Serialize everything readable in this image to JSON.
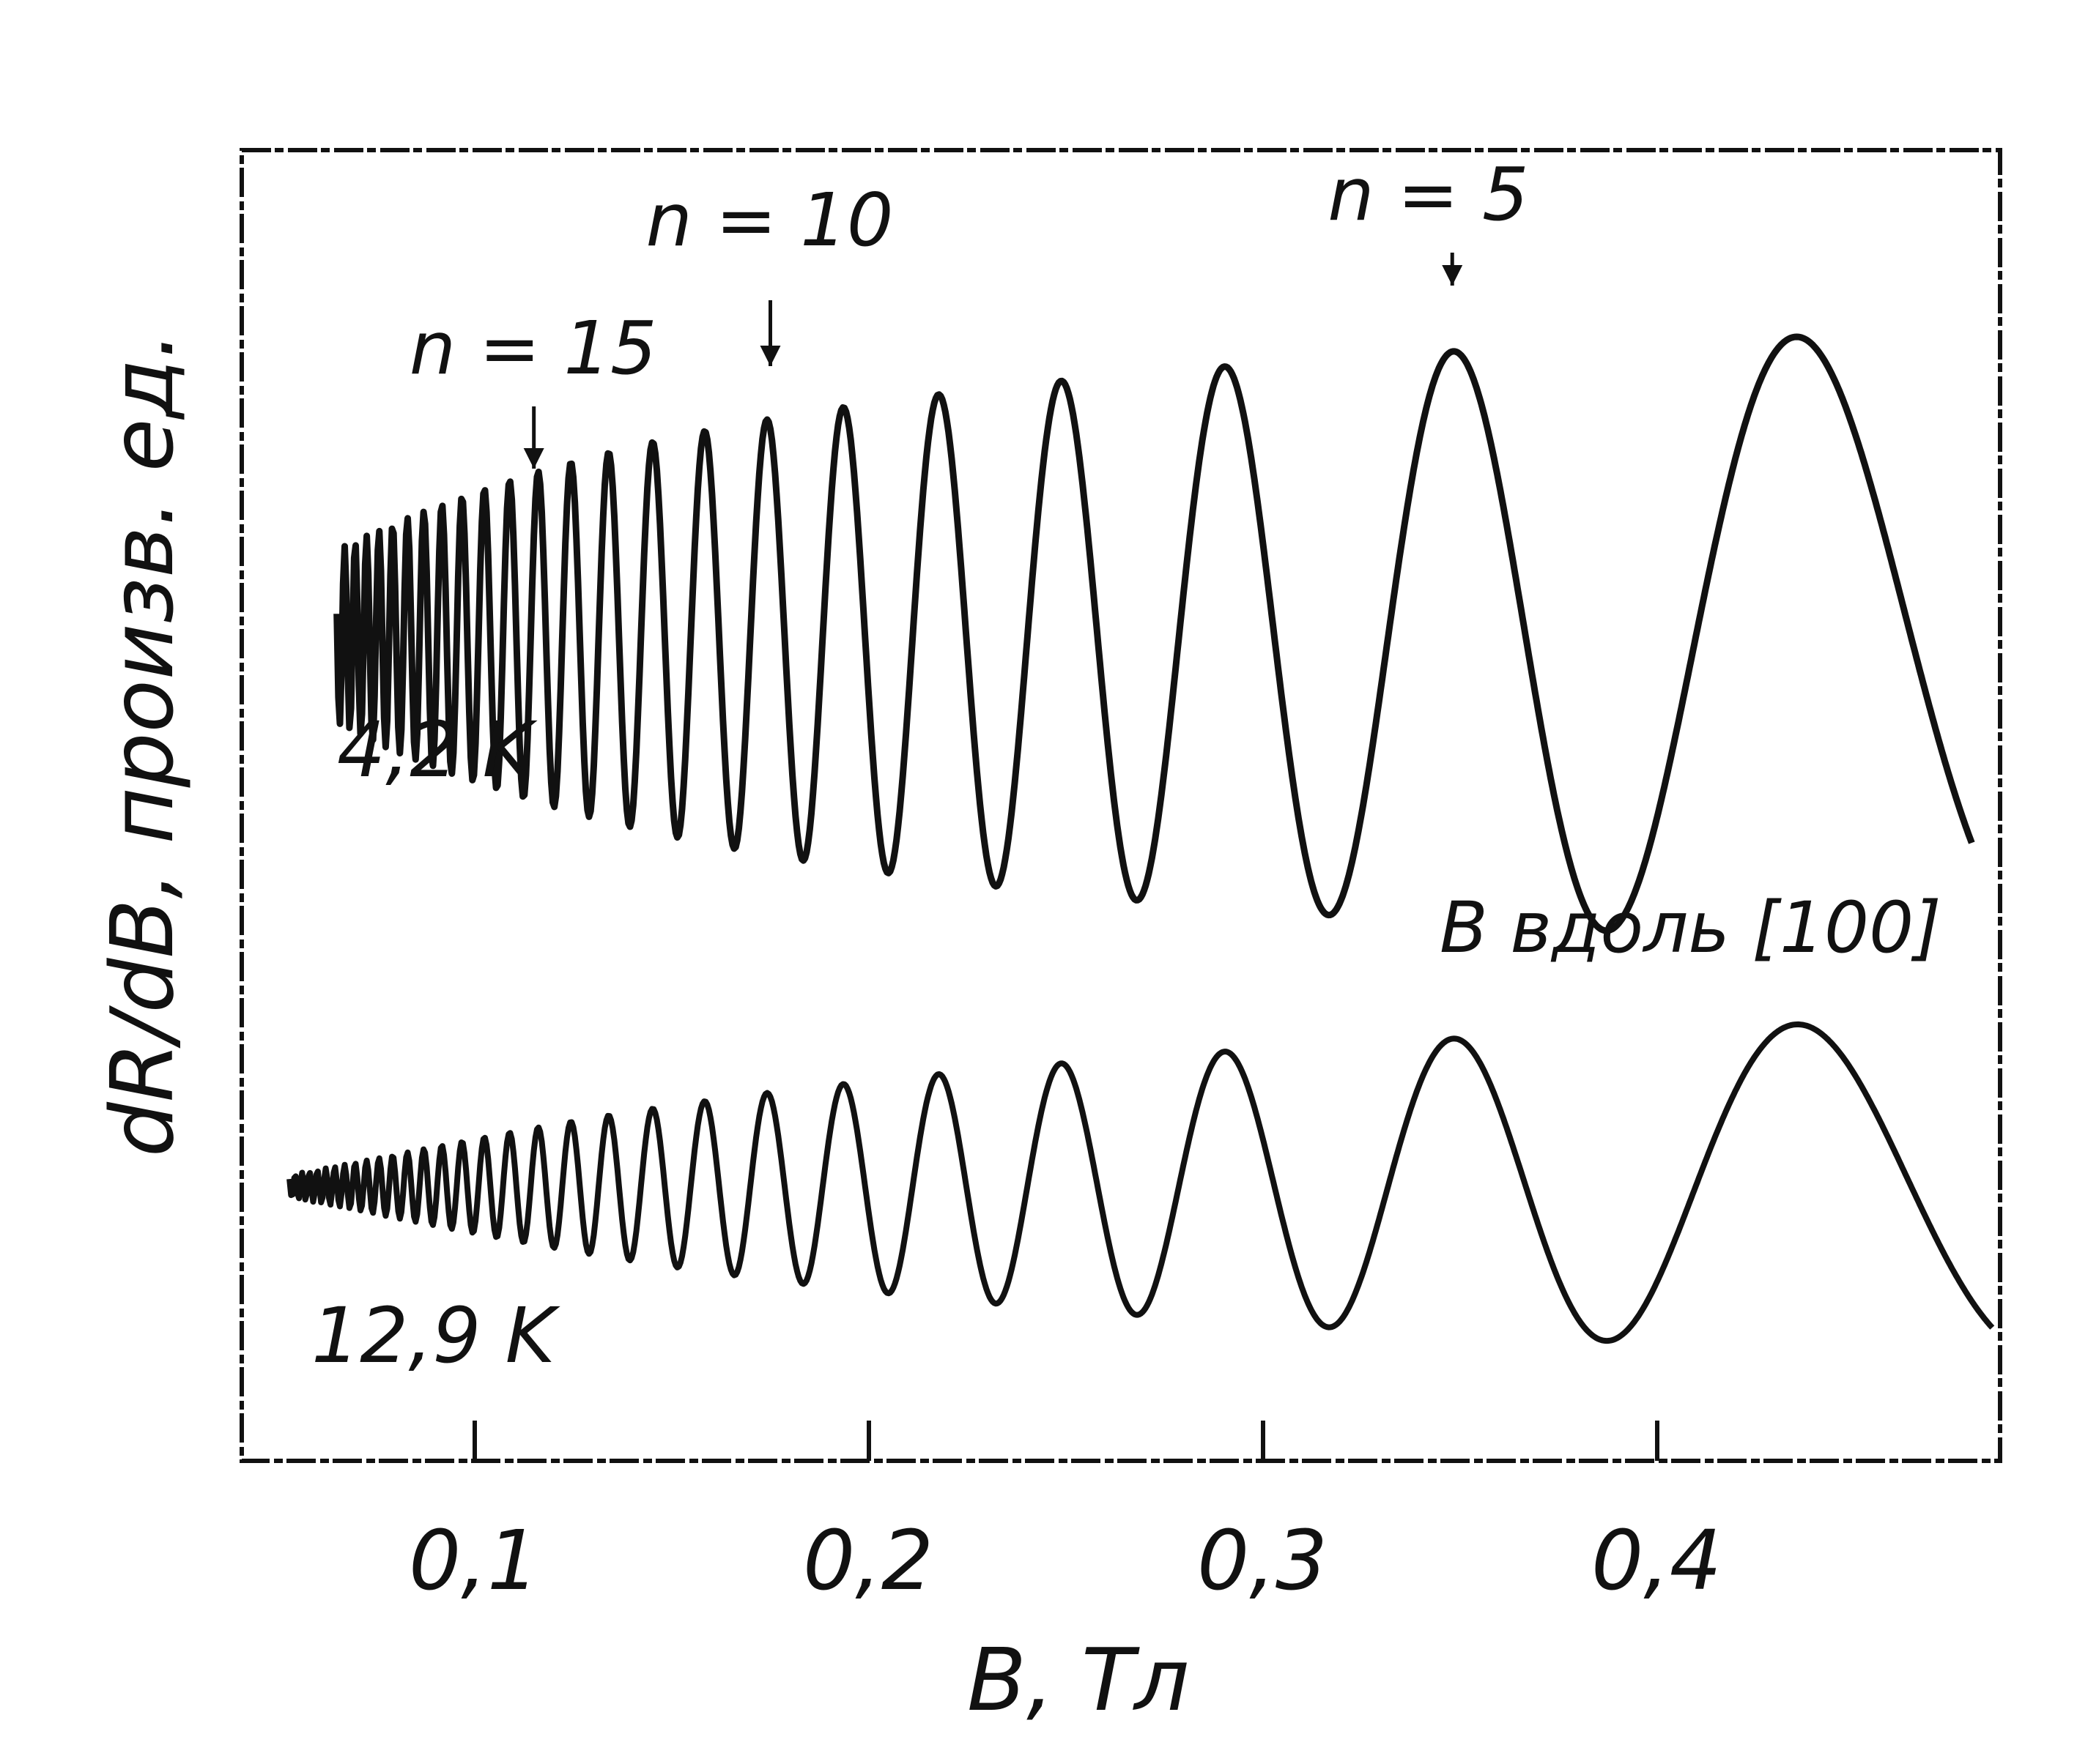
{
  "chart_data": {
    "type": "line",
    "xlabel": "B, Тл",
    "ylabel": "dR/dB,  произв. ед.",
    "xlim": [
      0.04,
      0.485
    ],
    "xticks": [
      {
        "value": 0.1,
        "label": "0,1"
      },
      {
        "value": 0.2,
        "label": "0,2"
      },
      {
        "value": 0.3,
        "label": "0,3"
      },
      {
        "value": 0.4,
        "label": "0,4"
      }
    ],
    "grid": false,
    "legend": "none",
    "field_note": "B вдоль [100]",
    "annotations": [
      {
        "text": "n = 15",
        "x": 0.115
      },
      {
        "text": "n = 10",
        "x": 0.175
      },
      {
        "text": "n = 5",
        "x": 0.348
      }
    ],
    "series": [
      {
        "name": "4,2 K",
        "period_inverse_field": 0.5742,
        "x_start": 0.065,
        "x_end": 0.48,
        "amplitude_factor": 1.0,
        "maxima": [
          {
            "x": 0.348,
            "y": 0.92
          },
          {
            "x": 0.29,
            "y": 0.9
          },
          {
            "x": 0.249,
            "y": 0.86
          },
          {
            "x": 0.218,
            "y": 0.83
          },
          {
            "x": 0.194,
            "y": 0.79
          },
          {
            "x": 0.175,
            "y": 0.73
          }
        ]
      },
      {
        "name": "12,9 K",
        "period_inverse_field": 0.5742,
        "x_start": 0.053,
        "x_end": 0.485,
        "amplitude_factor": 0.42,
        "maxima": [
          {
            "x": 0.449,
            "y": 0.42
          },
          {
            "x": 0.348,
            "y": 0.38
          },
          {
            "x": 0.29,
            "y": 0.34
          },
          {
            "x": 0.249,
            "y": 0.27
          }
        ]
      }
    ]
  },
  "colors": {
    "ink": "#111111",
    "paper": "#ffffff"
  }
}
